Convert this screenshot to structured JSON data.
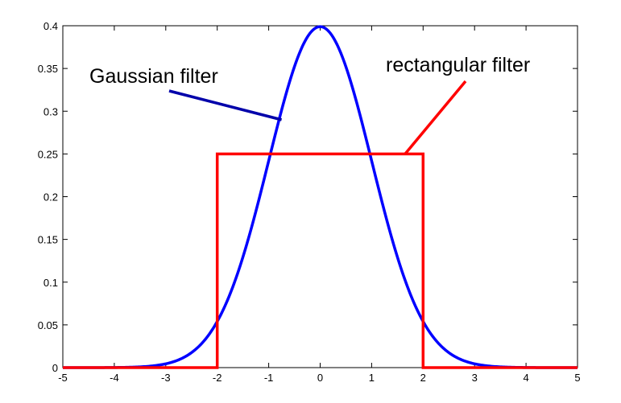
{
  "chart_data": {
    "type": "line",
    "title": "",
    "xlabel": "",
    "ylabel": "",
    "xlim": [
      -5,
      5
    ],
    "ylim": [
      0,
      0.4
    ],
    "grid": false,
    "legend": "none",
    "x_ticks": [
      -5,
      -4,
      -3,
      -2,
      -1,
      0,
      1,
      2,
      3,
      4,
      5
    ],
    "x_tick_labels": [
      "-5",
      "-4",
      "-3",
      "-2",
      "-1",
      "0",
      "1",
      "2",
      "3",
      "4",
      "5"
    ],
    "y_ticks": [
      0,
      0.05,
      0.1,
      0.15,
      0.2,
      0.25,
      0.3,
      0.35,
      0.4
    ],
    "y_tick_labels": [
      "0",
      "0.05",
      "0.1",
      "0.15",
      "0.2",
      "0.25",
      "0.3",
      "0.35",
      "0.4"
    ],
    "series": [
      {
        "color": "#0000ff",
        "function": "standard normal density",
        "x": [
          -5,
          -4.5,
          -4,
          -3.5,
          -3,
          -2.5,
          -2,
          -1.75,
          -1.5,
          -1.25,
          -1,
          -0.75,
          -0.5,
          -0.25,
          0,
          0.25,
          0.5,
          0.75,
          1,
          1.25,
          1.5,
          1.75,
          2,
          2.5,
          3,
          3.5,
          4,
          4.5,
          5
        ],
        "y": [
          1.5e-06,
          1.6e-05,
          0.000134,
          0.000873,
          0.00443,
          0.0175,
          0.054,
          0.0863,
          0.1295,
          0.1826,
          0.242,
          0.3011,
          0.3521,
          0.3867,
          0.3989,
          0.3867,
          0.3521,
          0.3011,
          0.242,
          0.1826,
          0.1295,
          0.0863,
          0.054,
          0.0175,
          0.00443,
          0.000873,
          0.000134,
          1.6e-05,
          1.5e-06
        ]
      },
      {
        "color": "#ff0000",
        "x": [
          -5,
          -2,
          -2,
          2,
          2,
          5
        ],
        "y": [
          0,
          0,
          0.25,
          0.25,
          0,
          0
        ]
      }
    ],
    "annotations": [
      {
        "text": "Gaussian filter",
        "points_to": {
          "x": -0.75,
          "y": 0.29
        },
        "color": "#0000aa"
      },
      {
        "text": "rectangular filter",
        "points_to": {
          "x": 1.65,
          "y": 0.25
        },
        "color": "#ff0000"
      }
    ]
  }
}
